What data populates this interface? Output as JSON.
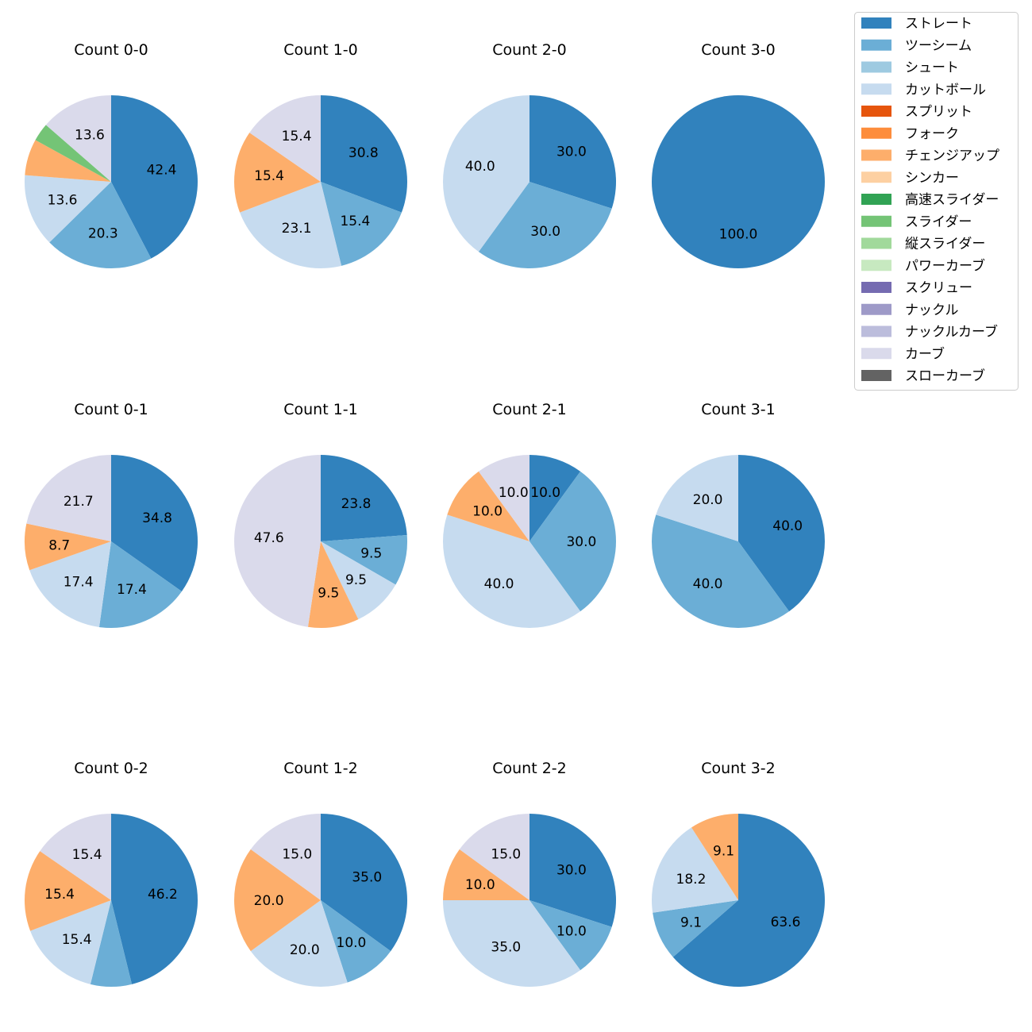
{
  "legend": [
    {
      "name": "ストレート",
      "color": "#3182bd"
    },
    {
      "name": "ツーシーム",
      "color": "#6baed6"
    },
    {
      "name": "シュート",
      "color": "#9ecae1"
    },
    {
      "name": "カットボール",
      "color": "#c6dbef"
    },
    {
      "name": "スプリット",
      "color": "#e6550d"
    },
    {
      "name": "フォーク",
      "color": "#fd8d3c"
    },
    {
      "name": "チェンジアップ",
      "color": "#fdae6b"
    },
    {
      "name": "シンカー",
      "color": "#fdd0a2"
    },
    {
      "name": "高速スライダー",
      "color": "#31a354"
    },
    {
      "name": "スライダー",
      "color": "#74c476"
    },
    {
      "name": "縦スライダー",
      "color": "#a1d99b"
    },
    {
      "name": "パワーカーブ",
      "color": "#c7e9c0"
    },
    {
      "name": "スクリュー",
      "color": "#756bb1"
    },
    {
      "name": "ナックル",
      "color": "#9e9ac8"
    },
    {
      "name": "ナックルカーブ",
      "color": "#bcbddc"
    },
    {
      "name": "カーブ",
      "color": "#dadaeb"
    },
    {
      "name": "スローカーブ",
      "color": "#636363"
    }
  ],
  "chart_data": [
    {
      "type": "pie",
      "title": "Count 0-0",
      "slices": [
        {
          "pitch": "ストレート",
          "value": 42.4,
          "label": "42.4"
        },
        {
          "pitch": "ツーシーム",
          "value": 20.3,
          "label": "20.3"
        },
        {
          "pitch": "カットボール",
          "value": 13.6,
          "label": "13.6"
        },
        {
          "pitch": "チェンジアップ",
          "value": 6.8,
          "label": ""
        },
        {
          "pitch": "スライダー",
          "value": 3.4,
          "label": ""
        },
        {
          "pitch": "カーブ",
          "value": 13.6,
          "label": "13.6"
        }
      ]
    },
    {
      "type": "pie",
      "title": "Count 1-0",
      "slices": [
        {
          "pitch": "ストレート",
          "value": 30.8,
          "label": "30.8"
        },
        {
          "pitch": "ツーシーム",
          "value": 15.4,
          "label": "15.4"
        },
        {
          "pitch": "カットボール",
          "value": 23.1,
          "label": "23.1"
        },
        {
          "pitch": "チェンジアップ",
          "value": 15.4,
          "label": "15.4"
        },
        {
          "pitch": "カーブ",
          "value": 15.4,
          "label": "15.4"
        }
      ]
    },
    {
      "type": "pie",
      "title": "Count 2-0",
      "slices": [
        {
          "pitch": "ストレート",
          "value": 30.0,
          "label": "30.0"
        },
        {
          "pitch": "ツーシーム",
          "value": 30.0,
          "label": "30.0"
        },
        {
          "pitch": "カットボール",
          "value": 40.0,
          "label": "40.0"
        }
      ]
    },
    {
      "type": "pie",
      "title": "Count 3-0",
      "slices": [
        {
          "pitch": "ストレート",
          "value": 100.0,
          "label": "100.0"
        }
      ]
    },
    {
      "type": "pie",
      "title": "Count 0-1",
      "slices": [
        {
          "pitch": "ストレート",
          "value": 34.8,
          "label": "34.8"
        },
        {
          "pitch": "ツーシーム",
          "value": 17.4,
          "label": "17.4"
        },
        {
          "pitch": "カットボール",
          "value": 17.4,
          "label": "17.4"
        },
        {
          "pitch": "チェンジアップ",
          "value": 8.7,
          "label": "8.7"
        },
        {
          "pitch": "カーブ",
          "value": 21.7,
          "label": "21.7"
        }
      ]
    },
    {
      "type": "pie",
      "title": "Count 1-1",
      "slices": [
        {
          "pitch": "ストレート",
          "value": 23.8,
          "label": "23.8"
        },
        {
          "pitch": "ツーシーム",
          "value": 9.5,
          "label": "9.5"
        },
        {
          "pitch": "カットボール",
          "value": 9.5,
          "label": "9.5"
        },
        {
          "pitch": "チェンジアップ",
          "value": 9.5,
          "label": "9.5"
        },
        {
          "pitch": "カーブ",
          "value": 47.6,
          "label": "47.6"
        }
      ]
    },
    {
      "type": "pie",
      "title": "Count 2-1",
      "slices": [
        {
          "pitch": "ストレート",
          "value": 10.0,
          "label": "10.0"
        },
        {
          "pitch": "ツーシーム",
          "value": 30.0,
          "label": "30.0"
        },
        {
          "pitch": "カットボール",
          "value": 40.0,
          "label": "40.0"
        },
        {
          "pitch": "チェンジアップ",
          "value": 10.0,
          "label": "10.0"
        },
        {
          "pitch": "カーブ",
          "value": 10.0,
          "label": "10.0"
        }
      ]
    },
    {
      "type": "pie",
      "title": "Count 3-1",
      "slices": [
        {
          "pitch": "ストレート",
          "value": 40.0,
          "label": "40.0"
        },
        {
          "pitch": "ツーシーム",
          "value": 40.0,
          "label": "40.0"
        },
        {
          "pitch": "カットボール",
          "value": 20.0,
          "label": "20.0"
        }
      ]
    },
    {
      "type": "pie",
      "title": "Count 0-2",
      "slices": [
        {
          "pitch": "ストレート",
          "value": 46.2,
          "label": "46.2"
        },
        {
          "pitch": "ツーシーム",
          "value": 7.7,
          "label": ""
        },
        {
          "pitch": "カットボール",
          "value": 15.4,
          "label": "15.4"
        },
        {
          "pitch": "チェンジアップ",
          "value": 15.4,
          "label": "15.4"
        },
        {
          "pitch": "カーブ",
          "value": 15.4,
          "label": "15.4"
        }
      ]
    },
    {
      "type": "pie",
      "title": "Count 1-2",
      "slices": [
        {
          "pitch": "ストレート",
          "value": 35.0,
          "label": "35.0"
        },
        {
          "pitch": "ツーシーム",
          "value": 10.0,
          "label": "10.0"
        },
        {
          "pitch": "カットボール",
          "value": 20.0,
          "label": "20.0"
        },
        {
          "pitch": "チェンジアップ",
          "value": 20.0,
          "label": "20.0"
        },
        {
          "pitch": "カーブ",
          "value": 15.0,
          "label": "15.0"
        }
      ]
    },
    {
      "type": "pie",
      "title": "Count 2-2",
      "slices": [
        {
          "pitch": "ストレート",
          "value": 30.0,
          "label": "30.0"
        },
        {
          "pitch": "ツーシーム",
          "value": 10.0,
          "label": "10.0"
        },
        {
          "pitch": "カットボール",
          "value": 35.0,
          "label": "35.0"
        },
        {
          "pitch": "チェンジアップ",
          "value": 10.0,
          "label": "10.0"
        },
        {
          "pitch": "カーブ",
          "value": 15.0,
          "label": "15.0"
        }
      ]
    },
    {
      "type": "pie",
      "title": "Count 3-2",
      "slices": [
        {
          "pitch": "ストレート",
          "value": 63.6,
          "label": "63.6"
        },
        {
          "pitch": "ツーシーム",
          "value": 9.1,
          "label": "9.1"
        },
        {
          "pitch": "カットボール",
          "value": 18.2,
          "label": "18.2"
        },
        {
          "pitch": "チェンジアップ",
          "value": 9.1,
          "label": "9.1"
        }
      ]
    }
  ]
}
